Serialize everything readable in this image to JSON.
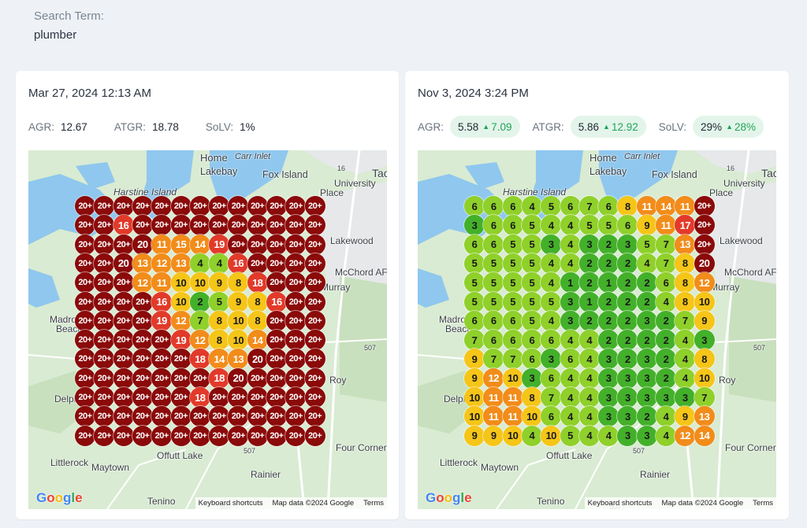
{
  "search": {
    "label": "Search Term:",
    "term": "plumber"
  },
  "colors": {
    "rank_1_3": "#43b02a",
    "rank_4_7": "#8fd02a",
    "rank_8_10": "#f5c518",
    "rank_11_15": "#f28c1a",
    "rank_16_19": "#e23a2a",
    "rank_20_plus": "#8b0a0a",
    "positive_delta": "#23a35a"
  },
  "left": {
    "date": "Mar 27, 2024 12:13 AM",
    "metrics": [
      {
        "label": "AGR:",
        "value": "12.67"
      },
      {
        "label": "ATGR:",
        "value": "18.78"
      },
      {
        "label": "SoLV:",
        "value": "1%"
      }
    ],
    "grid": [
      [
        "20+",
        "20+",
        "20+",
        "20+",
        "20+",
        "20+",
        "20+",
        "20+",
        "20+",
        "20+",
        "20+",
        "20+",
        "20+"
      ],
      [
        "20+",
        "20+",
        "16",
        "20+",
        "20+",
        "20+",
        "20+",
        "20+",
        "20+",
        "20+",
        "20+",
        "20+",
        "20+"
      ],
      [
        "20+",
        "20+",
        "20+",
        "20",
        "11",
        "15",
        "14",
        "19",
        "20+",
        "20+",
        "20+",
        "20+",
        "20+"
      ],
      [
        "20+",
        "20+",
        "20",
        "13",
        "12",
        "13",
        "4",
        "4",
        "16",
        "20+",
        "20+",
        "20+",
        "20+"
      ],
      [
        "20+",
        "20+",
        "20+",
        "12",
        "11",
        "10",
        "10",
        "9",
        "8",
        "18",
        "20+",
        "20+",
        "20+"
      ],
      [
        "20+",
        "20+",
        "20+",
        "20+",
        "16",
        "10",
        "2",
        "5",
        "9",
        "8",
        "16",
        "20+",
        "20+"
      ],
      [
        "20+",
        "20+",
        "20+",
        "20+",
        "19",
        "12",
        "7",
        "8",
        "10",
        "8",
        "20+",
        "20+",
        "20+"
      ],
      [
        "20+",
        "20+",
        "20+",
        "20+",
        "20+",
        "19",
        "12",
        "8",
        "10",
        "14",
        "20+",
        "20+",
        "20+"
      ],
      [
        "20+",
        "20+",
        "20+",
        "20+",
        "20+",
        "20+",
        "18",
        "14",
        "13",
        "20",
        "20+",
        "20+",
        "20+"
      ],
      [
        "20+",
        "20+",
        "20+",
        "20+",
        "20+",
        "20+",
        "20+",
        "18",
        "20",
        "20+",
        "20+",
        "20+",
        "20+"
      ],
      [
        "20+",
        "20+",
        "20+",
        "20+",
        "20+",
        "20+",
        "18",
        "20+",
        "20+",
        "20+",
        "20+",
        "20+",
        "20+"
      ],
      [
        "20+",
        "20+",
        "20+",
        "20+",
        "20+",
        "20+",
        "20+",
        "20+",
        "20+",
        "20+",
        "20+",
        "20+",
        "20+"
      ],
      [
        "20+",
        "20+",
        "20+",
        "20+",
        "20+",
        "20+",
        "20+",
        "20+",
        "20+",
        "20+",
        "20+",
        "20+",
        "20+"
      ]
    ]
  },
  "right": {
    "date": "Nov 3, 2024 3:24 PM",
    "metrics": [
      {
        "label": "AGR:",
        "value": "5.58",
        "delta": "7.09"
      },
      {
        "label": "ATGR:",
        "value": "5.86",
        "delta": "12.92"
      },
      {
        "label": "SoLV:",
        "value": "29%",
        "delta": "28%"
      }
    ],
    "grid": [
      [
        "6",
        "6",
        "6",
        "4",
        "5",
        "6",
        "7",
        "6",
        "8",
        "11",
        "14",
        "11",
        "20+"
      ],
      [
        "3",
        "6",
        "6",
        "5",
        "4",
        "4",
        "5",
        "5",
        "6",
        "9",
        "11",
        "17",
        "20+"
      ],
      [
        "6",
        "6",
        "5",
        "5",
        "3",
        "4",
        "3",
        "2",
        "3",
        "5",
        "7",
        "13",
        "20+"
      ],
      [
        "5",
        "5",
        "5",
        "5",
        "4",
        "4",
        "2",
        "2",
        "2",
        "4",
        "7",
        "8",
        "20"
      ],
      [
        "5",
        "5",
        "5",
        "5",
        "4",
        "1",
        "2",
        "1",
        "2",
        "2",
        "6",
        "8",
        "12"
      ],
      [
        "5",
        "5",
        "5",
        "5",
        "5",
        "3",
        "1",
        "2",
        "2",
        "2",
        "4",
        "8",
        "10"
      ],
      [
        "6",
        "6",
        "6",
        "5",
        "4",
        "3",
        "2",
        "2",
        "2",
        "3",
        "2",
        "7",
        "9"
      ],
      [
        "7",
        "6",
        "6",
        "6",
        "6",
        "4",
        "4",
        "2",
        "2",
        "2",
        "2",
        "4",
        "3"
      ],
      [
        "9",
        "7",
        "7",
        "6",
        "3",
        "6",
        "4",
        "3",
        "2",
        "3",
        "2",
        "4",
        "8"
      ],
      [
        "9",
        "12",
        "10",
        "3",
        "6",
        "4",
        "4",
        "3",
        "3",
        "3",
        "2",
        "4",
        "10"
      ],
      [
        "10",
        "11",
        "11",
        "8",
        "7",
        "4",
        "4",
        "3",
        "3",
        "3",
        "3",
        "3",
        "7"
      ],
      [
        "10",
        "11",
        "11",
        "10",
        "6",
        "4",
        "4",
        "3",
        "3",
        "2",
        "4",
        "9",
        "13"
      ],
      [
        "9",
        "9",
        "10",
        "4",
        "10",
        "5",
        "4",
        "4",
        "3",
        "3",
        "4",
        "12",
        "14"
      ]
    ]
  },
  "map": {
    "labels": [
      {
        "text": "Home"
      },
      {
        "text": "Lakebay"
      },
      {
        "text": "Fox Island"
      },
      {
        "text": "Harstine Island"
      },
      {
        "text": "University"
      },
      {
        "text": "Place"
      },
      {
        "text": "Tac"
      },
      {
        "text": "Lakewood"
      },
      {
        "text": "McChord AF"
      },
      {
        "text": "Murray"
      },
      {
        "text": "Madrona"
      },
      {
        "text": "Beach"
      },
      {
        "text": "Roy"
      },
      {
        "text": "Delphi"
      },
      {
        "text": "Offutt Lake"
      },
      {
        "text": "Littlerock"
      },
      {
        "text": "Maytown"
      },
      {
        "text": "Rainier"
      },
      {
        "text": "Tenino"
      },
      {
        "text": "Four Corners"
      },
      {
        "text": "Carr Inlet"
      },
      {
        "text": "16"
      },
      {
        "text": "507"
      },
      {
        "text": "507"
      },
      {
        "text": "507"
      }
    ],
    "attribution": {
      "shortcuts": "Keyboard shortcuts",
      "data": "Map data ©2024 Google",
      "terms": "Terms"
    },
    "logo_letters": [
      "G",
      "o",
      "o",
      "g",
      "l",
      "e"
    ]
  }
}
